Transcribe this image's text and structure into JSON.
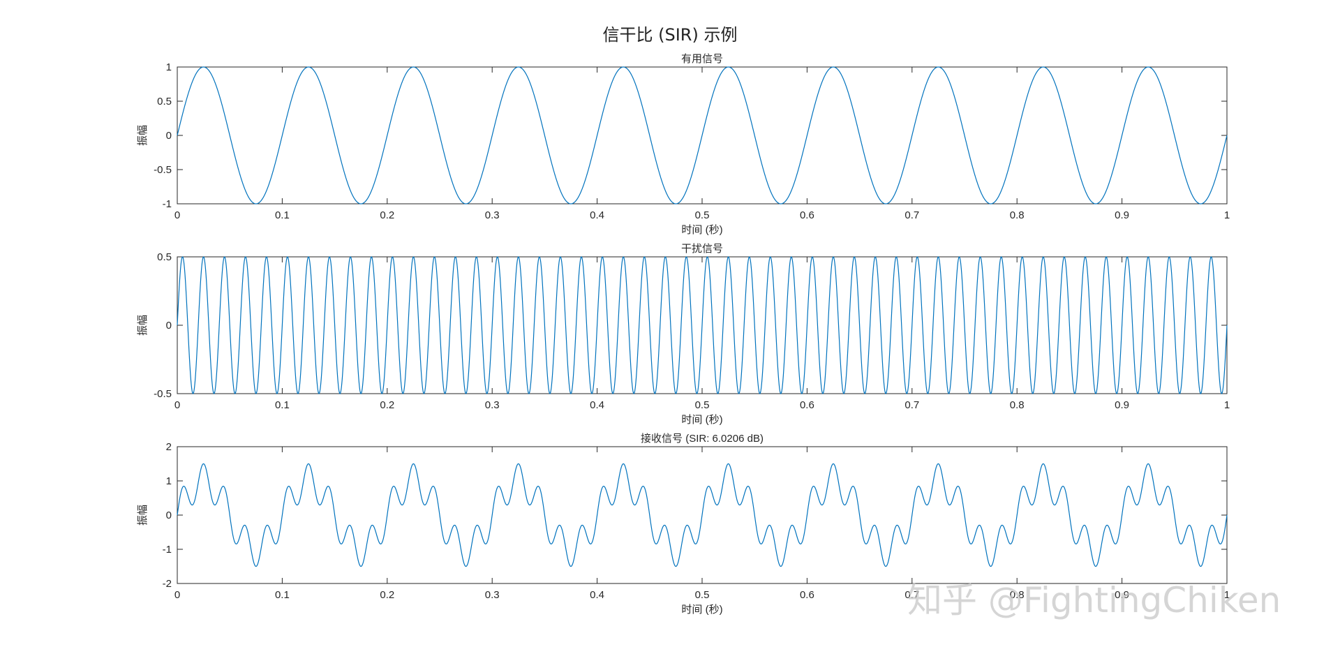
{
  "figure_title": "信干比 (SIR) 示例",
  "watermark": "知乎 @FightingChiken",
  "colors": {
    "line": "#0072BD",
    "axis": "#262626",
    "text": "#262626"
  },
  "chart_data": [
    {
      "type": "line",
      "title": "有用信号",
      "xlabel": "时间 (秒)",
      "ylabel": "振幅",
      "xlim": [
        0,
        1
      ],
      "ylim": [
        -1,
        1
      ],
      "xticks": [
        "0",
        "0.1",
        "0.2",
        "0.3",
        "0.4",
        "0.5",
        "0.6",
        "0.7",
        "0.8",
        "0.9",
        "1"
      ],
      "yticks": [
        "1",
        "0.5",
        "0",
        "-0.5",
        "-1"
      ],
      "series": [
        {
          "amplitude": 1,
          "frequency_hz": 10,
          "phase": 0
        }
      ]
    },
    {
      "type": "line",
      "title": "干扰信号",
      "xlabel": "时间 (秒)",
      "ylabel": "振幅",
      "xlim": [
        0,
        1
      ],
      "ylim": [
        -0.5,
        0.5
      ],
      "xticks": [
        "0",
        "0.1",
        "0.2",
        "0.3",
        "0.4",
        "0.5",
        "0.6",
        "0.7",
        "0.8",
        "0.9",
        "1"
      ],
      "yticks": [
        "0.5",
        "0",
        "-0.5"
      ],
      "series": [
        {
          "amplitude": 0.5,
          "frequency_hz": 50,
          "phase": 0
        }
      ]
    },
    {
      "type": "line",
      "title": "接收信号 (SIR: 6.0206 dB)",
      "xlabel": "时间 (秒)",
      "ylabel": "振幅",
      "xlim": [
        0,
        1
      ],
      "ylim": [
        -2,
        2
      ],
      "xticks": [
        "0",
        "0.1",
        "0.2",
        "0.3",
        "0.4",
        "0.5",
        "0.6",
        "0.7",
        "0.8",
        "0.9",
        "1"
      ],
      "yticks": [
        "2",
        "1",
        "0",
        "-1",
        "-2"
      ],
      "series": [
        {
          "components": [
            {
              "amplitude": 1,
              "frequency_hz": 10
            },
            {
              "amplitude": 0.5,
              "frequency_hz": 50
            }
          ]
        }
      ]
    }
  ]
}
